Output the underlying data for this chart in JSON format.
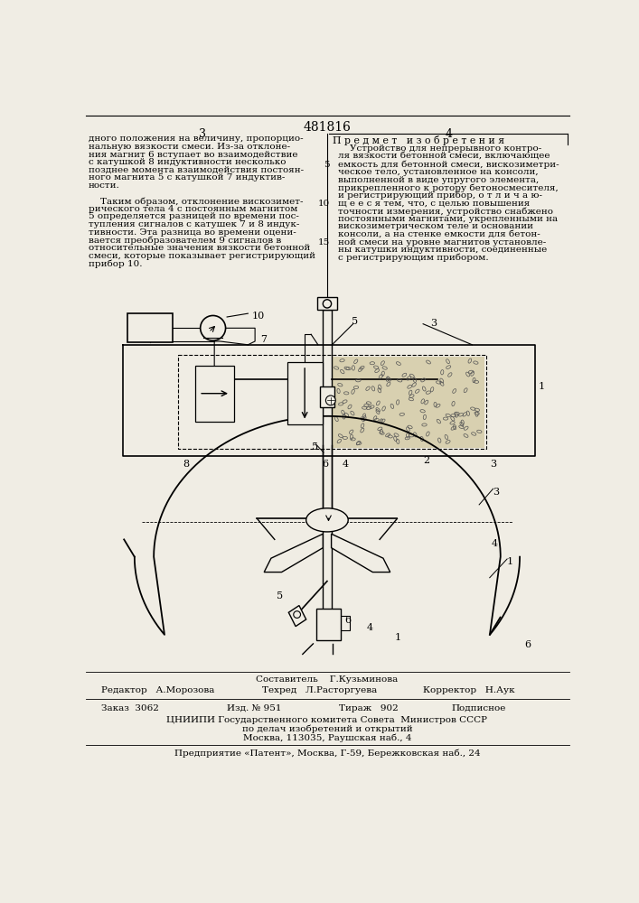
{
  "bg_color": "#f0ede4",
  "patent_number": "481816",
  "page_left": "3",
  "page_right": "4",
  "left_column_text": [
    "дного положения на величину, пропорцио-",
    "нальную вязкости смеси. Из-за отклоне-",
    "ния магнит 6 вступает во взаимодействие",
    "с катушкой 8 индуктивности несколько",
    "позднее момента взаимодействия постоян-",
    "ного магнита 5 с катушкой 7 индуктив-",
    "ности.",
    "",
    "    Таким образом, отклонение вискозимет-",
    "рического тела 4 с постоянным магнитом",
    "5 определяется разницей по времени пос-",
    "тупления сигналов с катушек 7 и 8 индук-",
    "тивности. Эта разница во времени оцени-",
    "вается преобразователем 9 сигналов в",
    "относительные значения вязкости бетонной",
    "смеси, которые показывает регистрирующий",
    "прибор 10."
  ],
  "subject_heading": "П р е д м е т   и з о б р е т е н и я",
  "right_column_text": [
    "    Устройство для непрерывного контро-",
    "ля вязкости бетонной смеси, включающее",
    "емкость для бетонной смеси, вискозиметри-",
    "ческое тело, установленное на консоли,",
    "выполненной в виде упругого элемента,",
    "прикрепленного к ротору бетоносмесителя,",
    "и регистрирующий прибор, о т л и ч а ю-",
    "щ е е с я тем, что, с целью повышения",
    "точности измерения, устройство снабжено",
    "постоянными магнитами, укрепленными на",
    "вискозиметрическом теле и основании",
    "консоли, а на стенке емкости для бетон-",
    "ной смеси на уровне магнитов установле-",
    "ны катушки индуктивности, соединенные",
    "с регистрирующим прибором."
  ],
  "line_number_rows": {
    "2": "5",
    "7": "10",
    "12": "15"
  },
  "footer_author": "Составитель    Г.Кузьминова",
  "footer_editor": "Редактор   А.Морозова",
  "footer_tech": "Техред   Л.Расторгуева",
  "footer_corrector": "Корректор   Н.Аук",
  "footer_order": "Заказ  3062",
  "footer_edition": "Изд. № 951",
  "footer_circulation": "Тираж   902",
  "footer_subscription": "Подписное",
  "footer_org1": "ЦНИИПИ Государственного комитета Совета  Министров СССР",
  "footer_org2": "по делач изобретений и открытий",
  "footer_address1": "Москва, 113035, Раушская наб., 4",
  "footer_org3": "Предприятие «Патент», Москва, Г-59, Бережковская наб., 24"
}
